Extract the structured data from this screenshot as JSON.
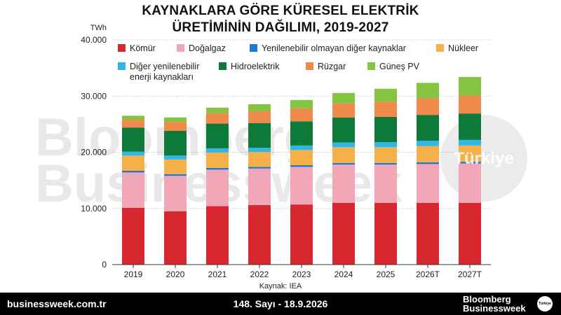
{
  "chart_data": {
    "type": "bar",
    "stacked": true,
    "title_line1": "KAYNAKLARA GÖRE KÜRESEL ELEKTRİK",
    "title_line2": "ÜRETİMİNİN DAĞILIMI, 2019-2027",
    "unit_label": "TWh",
    "ylim": [
      0,
      40000
    ],
    "yticks": [
      0,
      10000,
      20000,
      30000,
      40000
    ],
    "ytick_labels": [
      "0",
      "10.000",
      "20.000",
      "30.000",
      "40.000"
    ],
    "grid": true,
    "legend_position": "top",
    "categories": [
      "2019",
      "2020",
      "2021",
      "2022",
      "2023",
      "2024",
      "2025",
      "2026T",
      "2027T"
    ],
    "series": [
      {
        "name": "Kömür",
        "color": "#d7282f",
        "values": [
          10100,
          9500,
          10400,
          10600,
          10700,
          11000,
          11000,
          11000,
          11000
        ]
      },
      {
        "name": "Doğalgaz",
        "color": "#f2a7b8",
        "values": [
          6300,
          6300,
          6500,
          6500,
          6700,
          6800,
          6800,
          6900,
          7000
        ]
      },
      {
        "name": "Yenilenebilir olmayan diğer kaynaklar",
        "color": "#1f78d1",
        "values": [
          300,
          300,
          300,
          300,
          300,
          300,
          300,
          300,
          300
        ]
      },
      {
        "name": "Nükleer",
        "color": "#f5b04a",
        "values": [
          2700,
          2600,
          2750,
          2650,
          2700,
          2800,
          2800,
          2900,
          2900
        ]
      },
      {
        "name": "Diğer yenilenebilir enerji kaynakları",
        "color": "#33b6e6",
        "values": [
          700,
          700,
          750,
          750,
          800,
          850,
          900,
          950,
          1000
        ]
      },
      {
        "name": "Hidroelektrik",
        "color": "#0e7a3a",
        "values": [
          4300,
          4400,
          4400,
          4400,
          4300,
          4450,
          4500,
          4600,
          4700
        ]
      },
      {
        "name": "Rüzgar",
        "color": "#f08a4b",
        "values": [
          1400,
          1600,
          1850,
          2100,
          2300,
          2500,
          2700,
          3000,
          3200
        ]
      },
      {
        "name": "Güneş PV",
        "color": "#84c441",
        "values": [
          700,
          800,
          1000,
          1250,
          1500,
          1850,
          2300,
          2700,
          3300
        ]
      }
    ],
    "source": "Kaynak: IEA"
  },
  "watermark": {
    "line1": "Bloomberg",
    "line2": "Businessweek",
    "circle_text": "Türkiye"
  },
  "footer": {
    "site": "businessweek.com.tr",
    "issue": "148. Sayı - 18.9.2026",
    "logo_line1": "Bloomberg",
    "logo_line2": "Businessweek",
    "badge": "Türkiye"
  }
}
